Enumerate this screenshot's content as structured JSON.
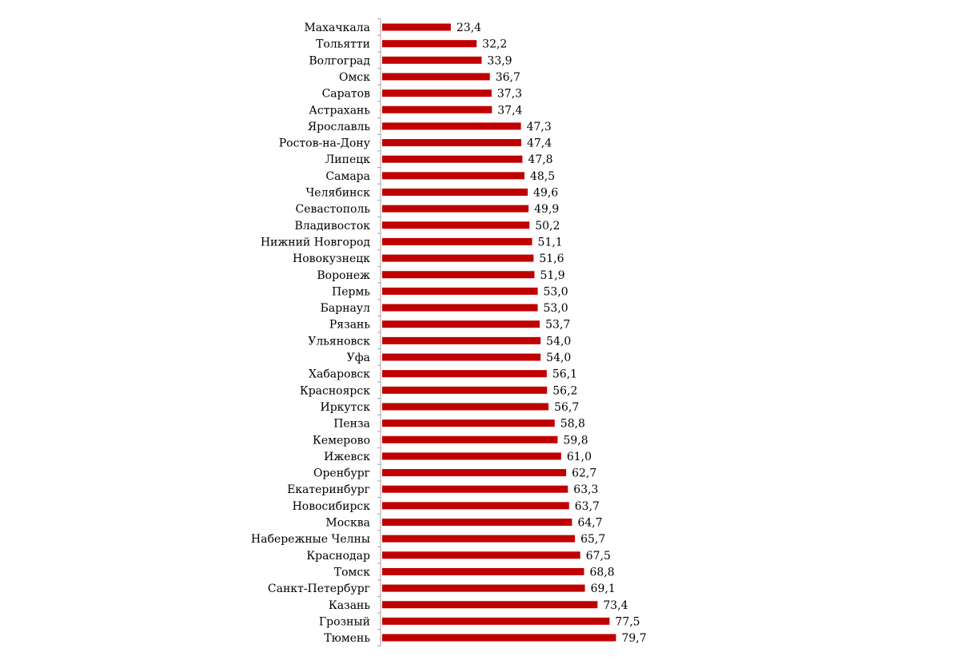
{
  "chart_data": {
    "type": "bar",
    "orientation": "horizontal",
    "categories": [
      "Махачкала",
      "Тольятти",
      "Волгоград",
      "Омск",
      "Саратов",
      "Астрахань",
      "Ярославль",
      "Ростов-на-Дону",
      "Липецк",
      "Самара",
      "Челябинск",
      "Севастополь",
      "Владивосток",
      "Нижний Новгород",
      "Новокузнецк",
      "Воронеж",
      "Пермь",
      "Барнаул",
      "Рязань",
      "Ульяновск",
      "Уфа",
      "Хабаровск",
      "Красноярск",
      "Иркутск",
      "Пенза",
      "Кемерово",
      "Ижевск",
      "Оренбург",
      "Екатеринбург",
      "Новосибирск",
      "Москва",
      "Набережные Челны",
      "Краснодар",
      "Томск",
      "Санкт-Петербург",
      "Казань",
      "Грозный",
      "Тюмень"
    ],
    "values": [
      23.4,
      32.2,
      33.9,
      36.7,
      37.3,
      37.4,
      47.3,
      47.4,
      47.8,
      48.5,
      49.6,
      49.9,
      50.2,
      51.1,
      51.6,
      51.9,
      53.0,
      53.0,
      53.7,
      54.0,
      54.0,
      56.1,
      56.2,
      56.7,
      58.8,
      59.8,
      61.0,
      62.7,
      63.3,
      63.7,
      64.7,
      65.7,
      67.5,
      68.8,
      69.1,
      73.4,
      77.5,
      79.7
    ],
    "value_labels": [
      "23,4",
      "32,2",
      "33,9",
      "36,7",
      "37,3",
      "37,4",
      "47,3",
      "47,4",
      "47,8",
      "48,5",
      "49,6",
      "49,9",
      "50,2",
      "51,1",
      "51,6",
      "51,9",
      "53,0",
      "53,0",
      "53,7",
      "54,0",
      "54,0",
      "56,1",
      "56,2",
      "56,7",
      "58,8",
      "59,8",
      "61,0",
      "62,7",
      "63,3",
      "63,7",
      "64,7",
      "65,7",
      "67,5",
      "68,8",
      "69,1",
      "73,4",
      "77,5",
      "79,7"
    ],
    "xlim": [
      0,
      80
    ],
    "bar_color": "#c00000",
    "axis_color": "#a6a6a6",
    "grid": false,
    "legend": "none"
  }
}
